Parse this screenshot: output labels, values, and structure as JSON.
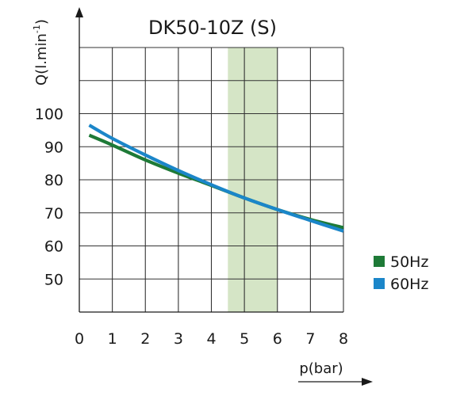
{
  "chart_data": {
    "type": "line",
    "title": "DK50-10Z (S)",
    "xlabel": "p(bar)",
    "ylabel_main": "Q(l.min",
    "ylabel_sup": "-1",
    "ylabel_close": ")",
    "xlim": [
      0,
      8
    ],
    "ylim": [
      40,
      120
    ],
    "x_ticks": [
      "0",
      "1",
      "2",
      "3",
      "4",
      "5",
      "6",
      "7",
      "8"
    ],
    "y_ticks": [
      {
        "value": 100,
        "label": "100"
      },
      {
        "value": 90,
        "label": "90"
      },
      {
        "value": 80,
        "label": "80"
      },
      {
        "value": 70,
        "label": "70"
      },
      {
        "value": 60,
        "label": "60"
      },
      {
        "value": 50,
        "label": "50"
      }
    ],
    "grid": true,
    "highlight_band": {
      "x_from": 4.5,
      "x_to": 6.0,
      "color": "#d5e5c6"
    },
    "legend_position": "right",
    "series": [
      {
        "name": "50Hz",
        "color": "#1e7a37",
        "x": [
          0.3,
          1,
          2,
          3,
          4,
          5,
          6,
          7,
          8
        ],
        "y": [
          93.5,
          90.5,
          86.0,
          82.0,
          78.3,
          74.5,
          71.0,
          68.0,
          65.5
        ]
      },
      {
        "name": "60Hz",
        "color": "#1b86c9",
        "x": [
          0.3,
          1,
          2,
          3,
          4,
          5,
          6,
          7,
          8
        ],
        "y": [
          96.5,
          92.5,
          87.5,
          82.8,
          78.5,
          74.5,
          71.0,
          67.7,
          64.5
        ]
      }
    ]
  }
}
